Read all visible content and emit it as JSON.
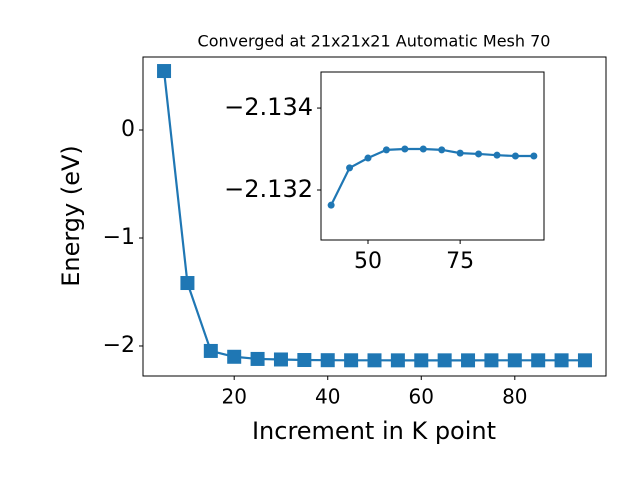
{
  "chart_data": [
    {
      "type": "line",
      "title": "Converged at 21x21x21 Automatic Mesh 70",
      "x_label": "Increment in K point",
      "y_label": "Energy (eV)",
      "series": [
        {
          "color": "#1f77b4",
          "marker": "square",
          "x": [
            5,
            10,
            15,
            20,
            25,
            30,
            35,
            40,
            45,
            50,
            55,
            60,
            65,
            70,
            75,
            80,
            85,
            90,
            95
          ],
          "values": [
            0.546,
            -1.417,
            -2.046,
            -2.1,
            -2.12,
            -2.125,
            -2.13,
            -2.1316,
            -2.1325,
            -2.1328,
            -2.133,
            -2.133,
            -2.133,
            -2.133,
            -2.1329,
            -2.1329,
            -2.1329,
            -2.1328,
            -2.1328
          ]
        }
      ],
      "xlim": [
        0.5,
        99.5
      ],
      "xticks": [
        20,
        40,
        60,
        80
      ],
      "ylim": [
        -2.278,
        0.676
      ],
      "yticks": [
        {
          "value": -2,
          "label": "−2"
        },
        {
          "value": -1,
          "label": "−1"
        },
        0
      ]
    },
    {
      "type": "line",
      "series": [
        {
          "color": "#1f77b4",
          "marker": "circle",
          "x": [
            40,
            45,
            50,
            55,
            60,
            65,
            70,
            75,
            80,
            85,
            90,
            95
          ],
          "values": [
            -2.13163,
            -2.13254,
            -2.13278,
            -2.13298,
            -2.133,
            -2.133,
            -2.13298,
            -2.1329,
            -2.13288,
            -2.13285,
            -2.13283,
            -2.13283
          ]
        }
      ],
      "xlim": [
        37.25,
        97.75
      ],
      "xticks": [
        50,
        75
      ],
      "ylim": [
        -2.13078,
        -2.13488
      ],
      "yticks": [
        {
          "value": -2.134,
          "label": "−2.134"
        },
        {
          "value": -2.132,
          "label": "−2.132"
        }
      ]
    }
  ]
}
